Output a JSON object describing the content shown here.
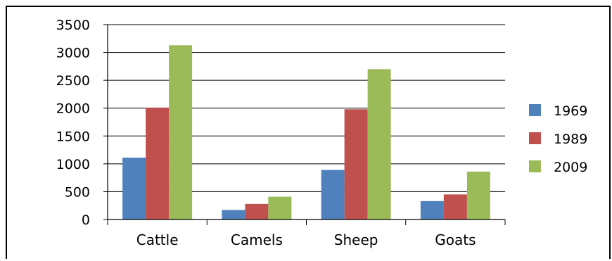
{
  "chart_data": {
    "type": "bar",
    "categories": [
      "Cattle",
      "Camels",
      "Sheep",
      "Goats"
    ],
    "series": [
      {
        "name": "1969",
        "color": "#4f81bd",
        "values": [
          1110,
          170,
          890,
          330
        ]
      },
      {
        "name": "1989",
        "color": "#c0504d",
        "values": [
          2010,
          280,
          1980,
          450
        ]
      },
      {
        "name": "2009",
        "color": "#9bbb59",
        "values": [
          3130,
          410,
          2700,
          860
        ]
      }
    ],
    "ylim": [
      0,
      3500
    ],
    "yticks": [
      0,
      500,
      1000,
      1500,
      2000,
      2500,
      3000,
      3500
    ],
    "title": "",
    "xlabel": "",
    "ylabel": "",
    "grid": true,
    "legend_position": "right"
  }
}
